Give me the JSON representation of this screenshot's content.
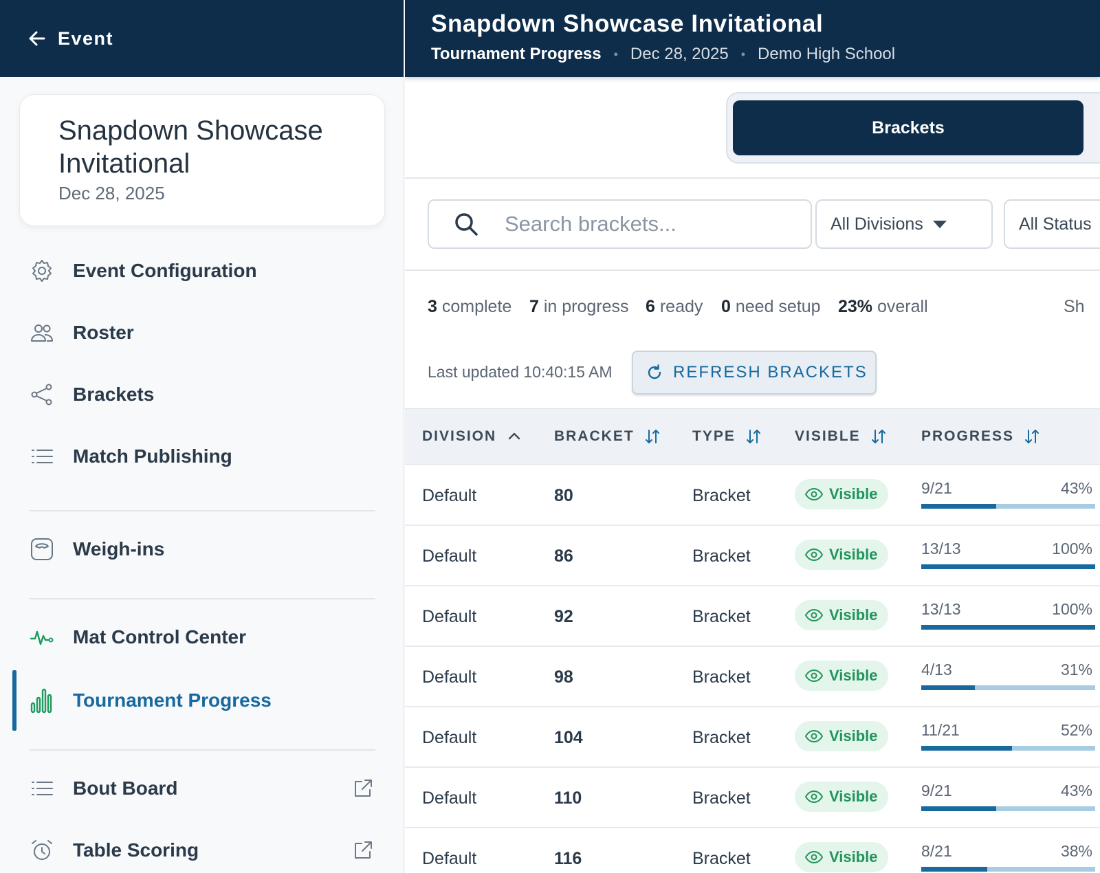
{
  "sidebar": {
    "back_label": "Event",
    "event_title": "Snapdown Showcase Invitational",
    "event_date": "Dec 28, 2025",
    "items": [
      {
        "label": "Event Configuration",
        "icon": "gear-icon"
      },
      {
        "label": "Roster",
        "icon": "users-icon"
      },
      {
        "label": "Brackets",
        "icon": "share-nodes-icon"
      },
      {
        "label": "Match Publishing",
        "icon": "list-icon"
      },
      {
        "label": "Weigh-ins",
        "icon": "scale-icon"
      },
      {
        "label": "Mat Control Center",
        "icon": "pulse-icon"
      },
      {
        "label": "Tournament Progress",
        "icon": "bar-chart-icon",
        "active": true
      },
      {
        "label": "Bout Board",
        "icon": "list-icon",
        "external": true
      },
      {
        "label": "Table Scoring",
        "icon": "alarm-clock-icon",
        "external": true
      }
    ]
  },
  "header": {
    "title": "Snapdown Showcase Invitational",
    "page": "Tournament Progress",
    "date": "Dec 28, 2025",
    "school": "Demo High School",
    "separator": "•"
  },
  "tabs": {
    "active": "Brackets"
  },
  "filters": {
    "search_placeholder": "Search brackets...",
    "division": "All Divisions",
    "status": "All Status"
  },
  "stats": {
    "complete_num": "3",
    "complete_label": "complete",
    "in_progress_num": "7",
    "in_progress_label": "in progress",
    "ready_num": "6",
    "ready_label": "ready",
    "need_setup_num": "0",
    "need_setup_label": "need setup",
    "overall_num": "23%",
    "overall_label": "overall",
    "trailing": "Sh"
  },
  "last_updated": "Last updated 10:40:15 AM",
  "refresh_label": "REFRESH BRACKETS",
  "table": {
    "columns": [
      "DIVISION",
      "BRACKET",
      "TYPE",
      "VISIBLE",
      "PROGRESS"
    ],
    "rows": [
      {
        "division": "Default",
        "bracket": "80",
        "type": "Bracket",
        "visible": "Visible",
        "progress": "9/21",
        "percent": "43%",
        "fraction": 0.43
      },
      {
        "division": "Default",
        "bracket": "86",
        "type": "Bracket",
        "visible": "Visible",
        "progress": "13/13",
        "percent": "100%",
        "fraction": 1.0
      },
      {
        "division": "Default",
        "bracket": "92",
        "type": "Bracket",
        "visible": "Visible",
        "progress": "13/13",
        "percent": "100%",
        "fraction": 1.0
      },
      {
        "division": "Default",
        "bracket": "98",
        "type": "Bracket",
        "visible": "Visible",
        "progress": "4/13",
        "percent": "31%",
        "fraction": 0.31
      },
      {
        "division": "Default",
        "bracket": "104",
        "type": "Bracket",
        "visible": "Visible",
        "progress": "11/21",
        "percent": "52%",
        "fraction": 0.52
      },
      {
        "division": "Default",
        "bracket": "110",
        "type": "Bracket",
        "visible": "Visible",
        "progress": "9/21",
        "percent": "43%",
        "fraction": 0.43
      },
      {
        "division": "Default",
        "bracket": "116",
        "type": "Bracket",
        "visible": "Visible",
        "progress": "8/21",
        "percent": "38%",
        "fraction": 0.38
      }
    ]
  },
  "colors": {
    "navy": "#0d2d4a",
    "accent": "#17699e",
    "visible_green": "#22945a",
    "progress_track": "#a8cde3"
  }
}
